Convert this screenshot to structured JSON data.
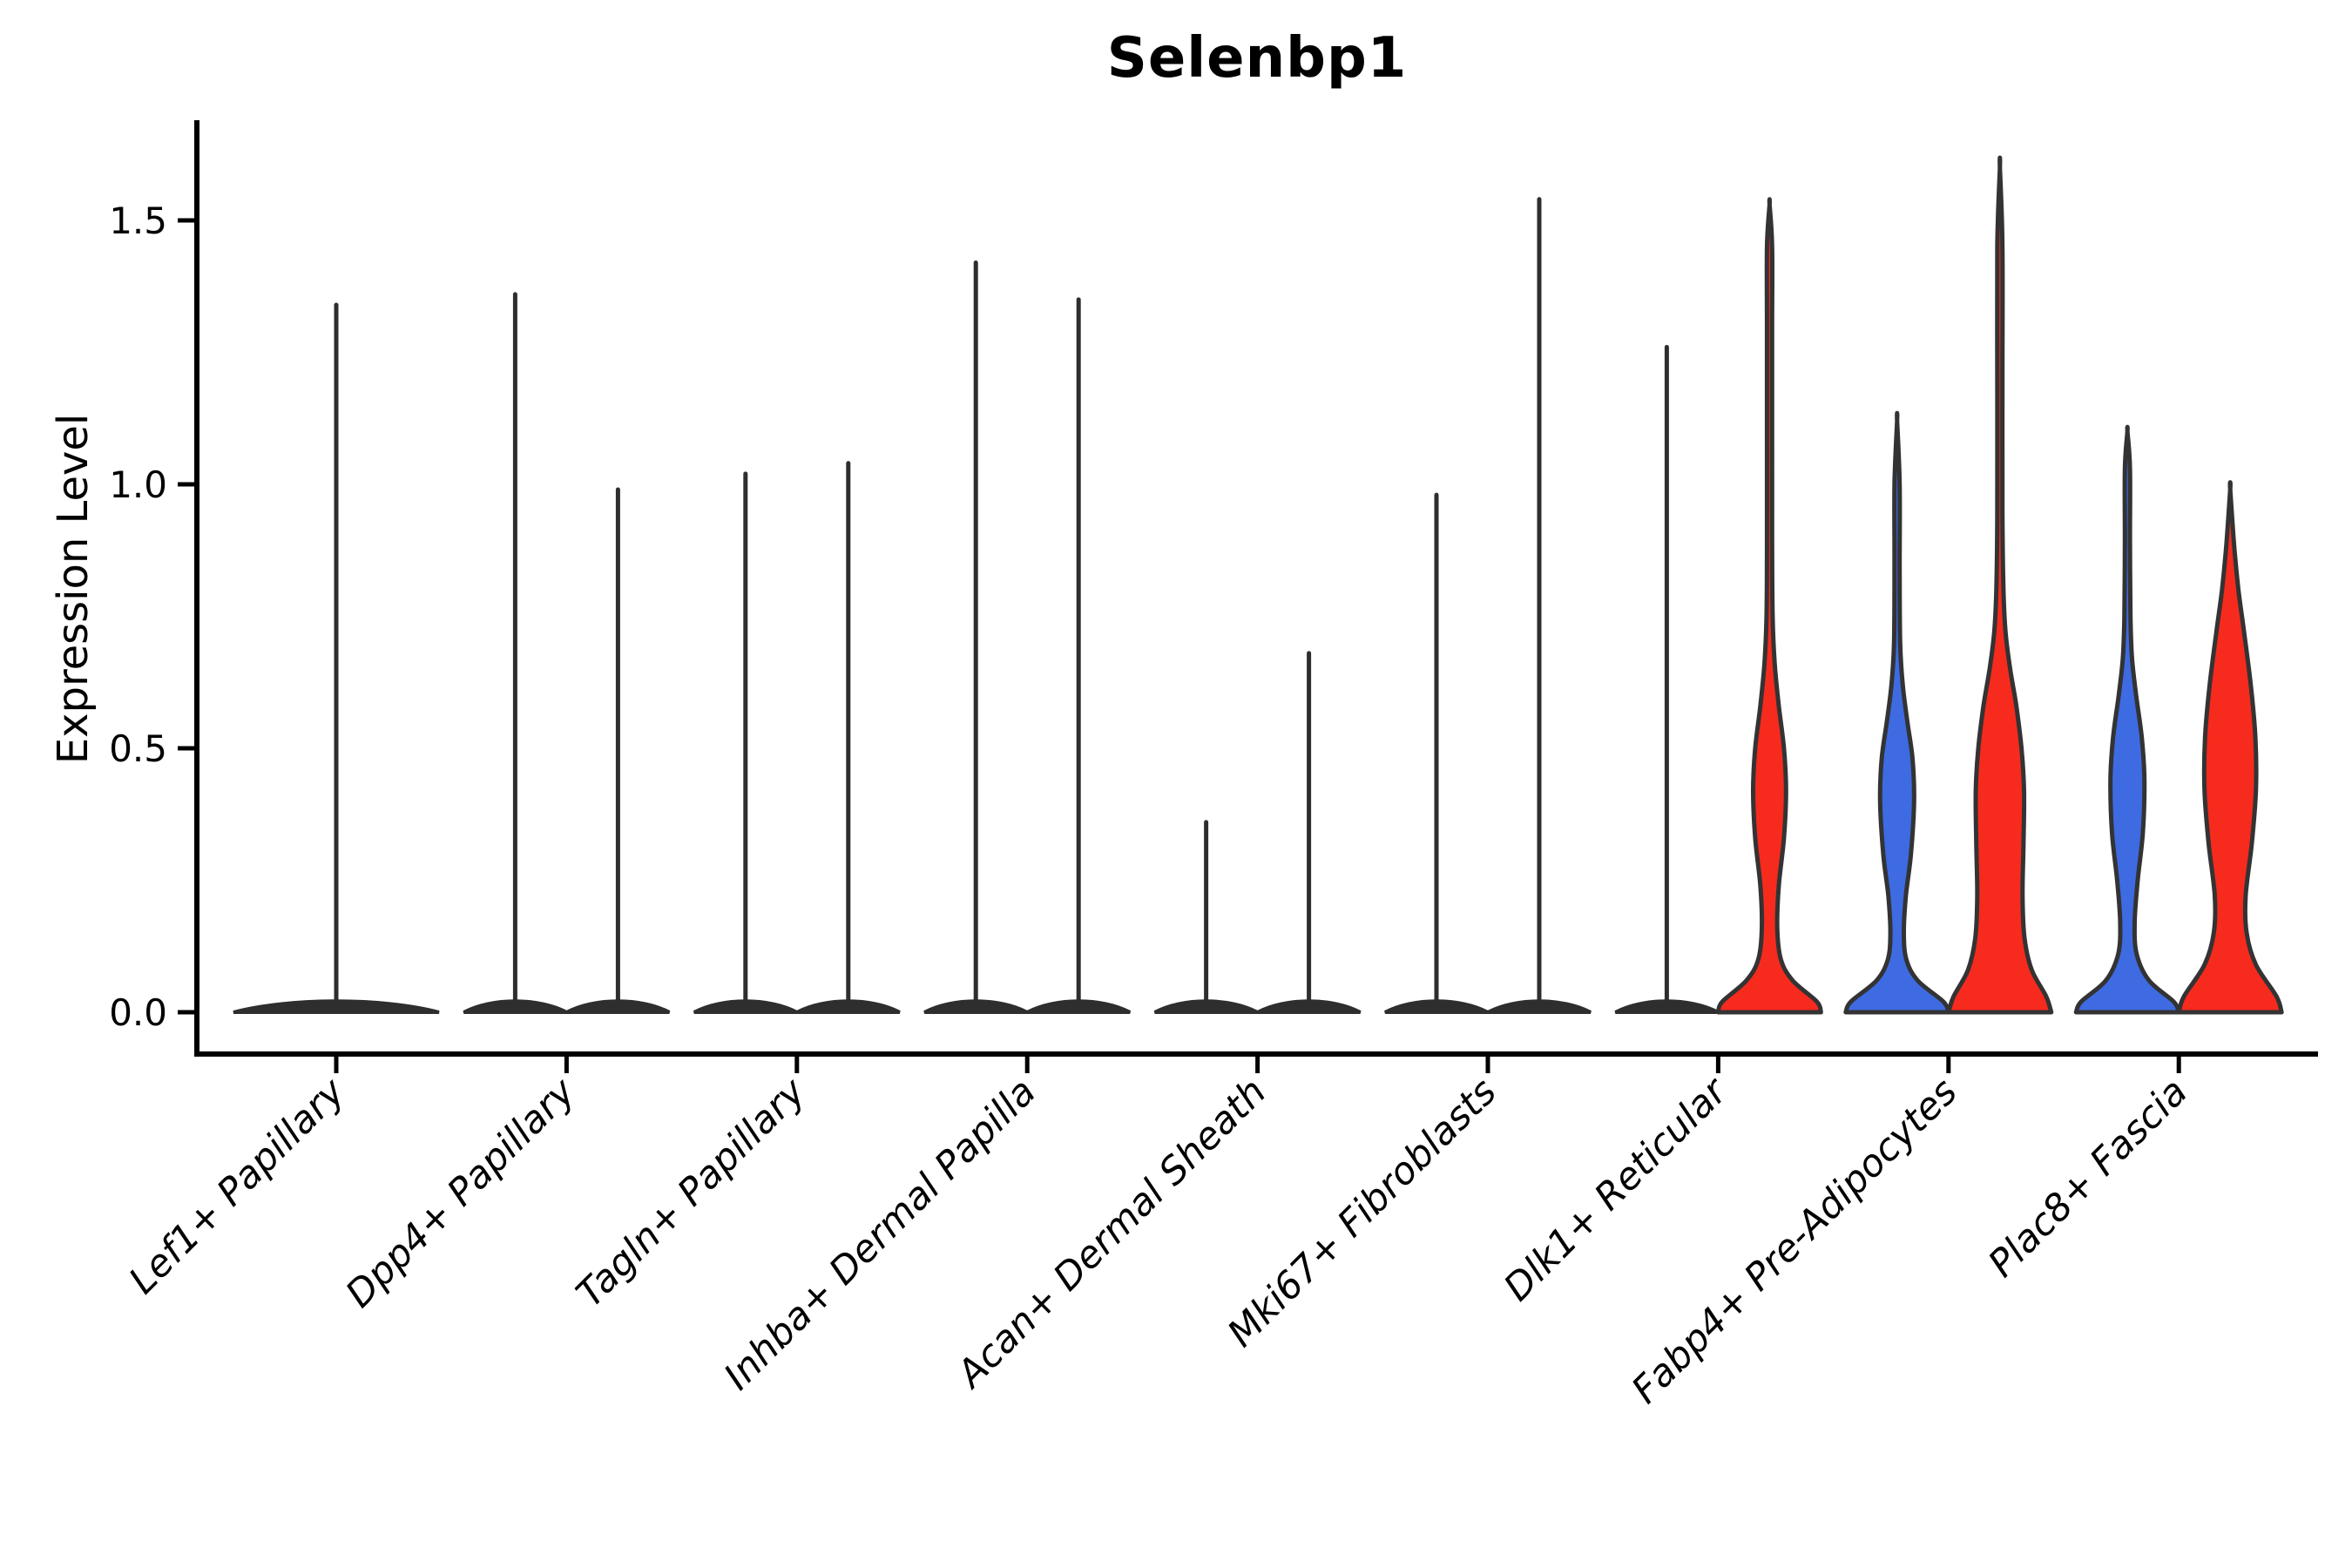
{
  "title": "Selenbp1",
  "y_axis": {
    "label": "Expression Level",
    "tick_labels": [
      "0.0",
      "0.5",
      "1.0",
      "1.5"
    ],
    "tick_values": [
      0.0,
      0.5,
      1.0,
      1.5
    ]
  },
  "colors": {
    "blue": "#3E6BE2",
    "red": "#F72A1E",
    "outline": "#333333",
    "spike": "#2E2E2E",
    "axis": "#000000",
    "text": "#000000"
  },
  "chart_data": {
    "type": "violin",
    "title": "Selenbp1",
    "ylabel": "Expression Level",
    "ylim": [
      -0.12,
      1.72
    ],
    "yticks": [
      0.0,
      0.5,
      1.0,
      1.5
    ],
    "ytick_labels": [
      "0.0",
      "0.5",
      "1.0",
      "1.5"
    ],
    "grid": false,
    "legend": "none",
    "split_colors": {
      "left": "#3E6BE2",
      "right": "#F72A1E"
    },
    "categories": [
      "Lef1+ Papillary",
      "Dpp4+ Papillary",
      "Tagln+ Papillary",
      "Inhba+ Dermal Papilla",
      "Acan+ Dermal Sheath",
      "Mki67+ Fibroblasts",
      "Dlk1+ Reticular",
      "Fabp4+ Pre-Adipocytes",
      "Plac8+ Fascia"
    ],
    "violins": [
      [
        {
          "side": "center",
          "style": "spike",
          "peak": 1.34,
          "fill": null,
          "width": 2.0
        }
      ],
      [
        {
          "side": "left",
          "style": "spike",
          "peak": 1.36,
          "fill": null,
          "width": 1.0
        },
        {
          "side": "right",
          "style": "spike",
          "peak": 0.99,
          "fill": null,
          "width": 1.0
        }
      ],
      [
        {
          "side": "left",
          "style": "spike",
          "peak": 1.02,
          "fill": null,
          "width": 1.0
        },
        {
          "side": "right",
          "style": "spike",
          "peak": 1.04,
          "fill": null,
          "width": 1.0
        }
      ],
      [
        {
          "side": "left",
          "style": "spike",
          "peak": 1.42,
          "fill": null,
          "width": 1.0
        },
        {
          "side": "right",
          "style": "spike",
          "peak": 1.35,
          "fill": null,
          "width": 1.0
        }
      ],
      [
        {
          "side": "left",
          "style": "spike",
          "peak": 0.36,
          "fill": null,
          "width": 1.0
        },
        {
          "side": "right",
          "style": "spike",
          "peak": 0.68,
          "fill": null,
          "width": 1.0
        }
      ],
      [
        {
          "side": "left",
          "style": "spike",
          "peak": 0.98,
          "fill": null,
          "width": 1.0
        },
        {
          "side": "right",
          "style": "spike",
          "peak": 1.54,
          "fill": null,
          "width": 1.0
        }
      ],
      [
        {
          "side": "left",
          "style": "spike",
          "peak": 1.26,
          "fill": null,
          "width": 1.0
        },
        {
          "side": "right",
          "style": "shaped",
          "peak": 1.53,
          "fill": "#F72A1E",
          "width": 1.0,
          "profile": [
            [
              0,
              1.0
            ],
            [
              0.02,
              0.92
            ],
            [
              0.06,
              0.45
            ],
            [
              0.1,
              0.22
            ],
            [
              0.16,
              0.15
            ],
            [
              0.24,
              0.18
            ],
            [
              0.33,
              0.28
            ],
            [
              0.42,
              0.32
            ],
            [
              0.5,
              0.28
            ],
            [
              0.58,
              0.18
            ],
            [
              0.66,
              0.1
            ],
            [
              0.75,
              0.06
            ],
            [
              0.9,
              0.05
            ],
            [
              1.1,
              0.05
            ],
            [
              1.3,
              0.05
            ],
            [
              1.45,
              0.05
            ],
            [
              1.53,
              0.0
            ]
          ]
        }
      ],
      [
        {
          "side": "left",
          "style": "shaped",
          "peak": 1.12,
          "fill": "#3E6BE2",
          "width": 1.0,
          "profile": [
            [
              0,
              1.0
            ],
            [
              0.02,
              0.9
            ],
            [
              0.06,
              0.4
            ],
            [
              0.1,
              0.18
            ],
            [
              0.15,
              0.13
            ],
            [
              0.22,
              0.17
            ],
            [
              0.3,
              0.27
            ],
            [
              0.4,
              0.33
            ],
            [
              0.48,
              0.3
            ],
            [
              0.55,
              0.2
            ],
            [
              0.62,
              0.11
            ],
            [
              0.7,
              0.06
            ],
            [
              0.85,
              0.05
            ],
            [
              1.0,
              0.05
            ],
            [
              1.12,
              0.0
            ]
          ]
        },
        {
          "side": "right",
          "style": "shaped",
          "peak": 1.6,
          "fill": "#F72A1E",
          "width": 1.0,
          "profile": [
            [
              0,
              1.0
            ],
            [
              0.03,
              0.9
            ],
            [
              0.08,
              0.62
            ],
            [
              0.14,
              0.48
            ],
            [
              0.22,
              0.44
            ],
            [
              0.32,
              0.46
            ],
            [
              0.42,
              0.47
            ],
            [
              0.5,
              0.42
            ],
            [
              0.58,
              0.32
            ],
            [
              0.65,
              0.2
            ],
            [
              0.72,
              0.11
            ],
            [
              0.8,
              0.07
            ],
            [
              0.95,
              0.05
            ],
            [
              1.2,
              0.05
            ],
            [
              1.45,
              0.05
            ],
            [
              1.6,
              0.0
            ]
          ]
        }
      ],
      [
        {
          "side": "left",
          "style": "shaped",
          "peak": 1.1,
          "fill": "#3E6BE2",
          "width": 1.0,
          "profile": [
            [
              0,
              1.0
            ],
            [
              0.02,
              0.9
            ],
            [
              0.06,
              0.42
            ],
            [
              0.11,
              0.18
            ],
            [
              0.17,
              0.14
            ],
            [
              0.25,
              0.2
            ],
            [
              0.34,
              0.3
            ],
            [
              0.44,
              0.33
            ],
            [
              0.52,
              0.28
            ],
            [
              0.6,
              0.17
            ],
            [
              0.67,
              0.09
            ],
            [
              0.75,
              0.06
            ],
            [
              0.9,
              0.05
            ],
            [
              1.03,
              0.05
            ],
            [
              1.1,
              0.0
            ]
          ]
        },
        {
          "side": "right",
          "style": "shaped",
          "peak": 0.99,
          "fill": "#F72A1E",
          "width": 1.0,
          "profile": [
            [
              0,
              1.0
            ],
            [
              0.03,
              0.9
            ],
            [
              0.09,
              0.5
            ],
            [
              0.15,
              0.32
            ],
            [
              0.22,
              0.3
            ],
            [
              0.32,
              0.42
            ],
            [
              0.42,
              0.5
            ],
            [
              0.52,
              0.49
            ],
            [
              0.62,
              0.4
            ],
            [
              0.72,
              0.27
            ],
            [
              0.8,
              0.16
            ],
            [
              0.88,
              0.08
            ],
            [
              0.99,
              0.0
            ]
          ]
        }
      ]
    ]
  }
}
